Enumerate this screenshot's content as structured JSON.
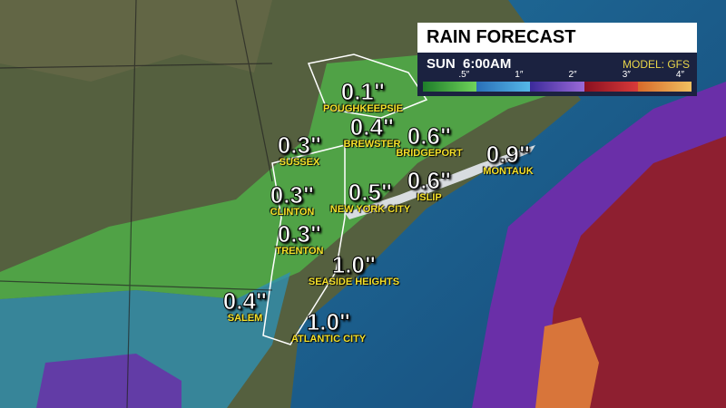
{
  "header": {
    "title": "RAIN FORECAST",
    "time": "SUN  6:00AM",
    "model": "MODEL: GFS"
  },
  "legend": {
    "labels": [
      ".5″",
      "1″",
      "2″",
      "3″",
      "4″"
    ]
  },
  "cities": [
    {
      "amount": "0.1\"",
      "name": "POUGHKEEPSIE"
    },
    {
      "amount": "0.4\"",
      "name": "BREWSTER"
    },
    {
      "amount": "0.6\"",
      "name": "BRIDGEPORT"
    },
    {
      "amount": "0.9\"",
      "name": "MONTAUK"
    },
    {
      "amount": "0.3\"",
      "name": "SUSSEX"
    },
    {
      "amount": "0.3\"",
      "name": "CLINTON"
    },
    {
      "amount": "0.5\"",
      "name": "NEW YORK CITY"
    },
    {
      "amount": "0.6\"",
      "name": "ISLIP"
    },
    {
      "amount": "0.3\"",
      "name": "TRENTON"
    },
    {
      "amount": "1.0\"",
      "name": "SEASIDE HEIGHTS"
    },
    {
      "amount": "0.4\"",
      "name": "SALEM"
    },
    {
      "amount": "1.0\"",
      "name": "ATLANTIC CITY"
    }
  ]
}
